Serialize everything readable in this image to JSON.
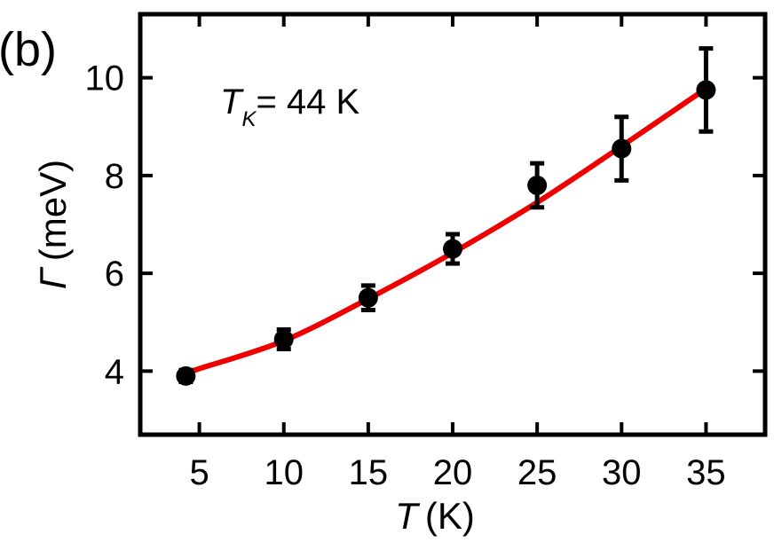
{
  "panel_label": "(b)",
  "chart_data": {
    "type": "scatter",
    "xlabel": {
      "symbol": "T",
      "unit": "(K)"
    },
    "ylabel": {
      "symbol": "Γ",
      "unit": "(meV)"
    },
    "xlim": [
      1.5,
      38.5
    ],
    "ylim": [
      2.7,
      11.3
    ],
    "xticks": [
      5,
      10,
      15,
      20,
      25,
      30,
      35
    ],
    "yticks": [
      4,
      6,
      8,
      10
    ],
    "grid": false,
    "annotation": {
      "main": "T",
      "sub": "K",
      "rest": "= 44 K"
    },
    "points": [
      {
        "x": 4.2,
        "y": 3.9,
        "err": 0.12
      },
      {
        "x": 10,
        "y": 4.65,
        "err": 0.2
      },
      {
        "x": 15,
        "y": 5.5,
        "err": 0.25
      },
      {
        "x": 20,
        "y": 6.5,
        "err": 0.3
      },
      {
        "x": 25,
        "y": 7.8,
        "err": 0.45
      },
      {
        "x": 30,
        "y": 8.55,
        "err": 0.65
      },
      {
        "x": 35,
        "y": 9.75,
        "err": 0.85
      }
    ],
    "fit": {
      "x": [
        4.2,
        5,
        10,
        15,
        20,
        25,
        30,
        35
      ],
      "y": [
        3.97,
        4.05,
        4.62,
        5.48,
        6.42,
        7.45,
        8.6,
        9.78
      ]
    },
    "colors": {
      "fit": "#ee0000",
      "points": "#000000"
    }
  }
}
